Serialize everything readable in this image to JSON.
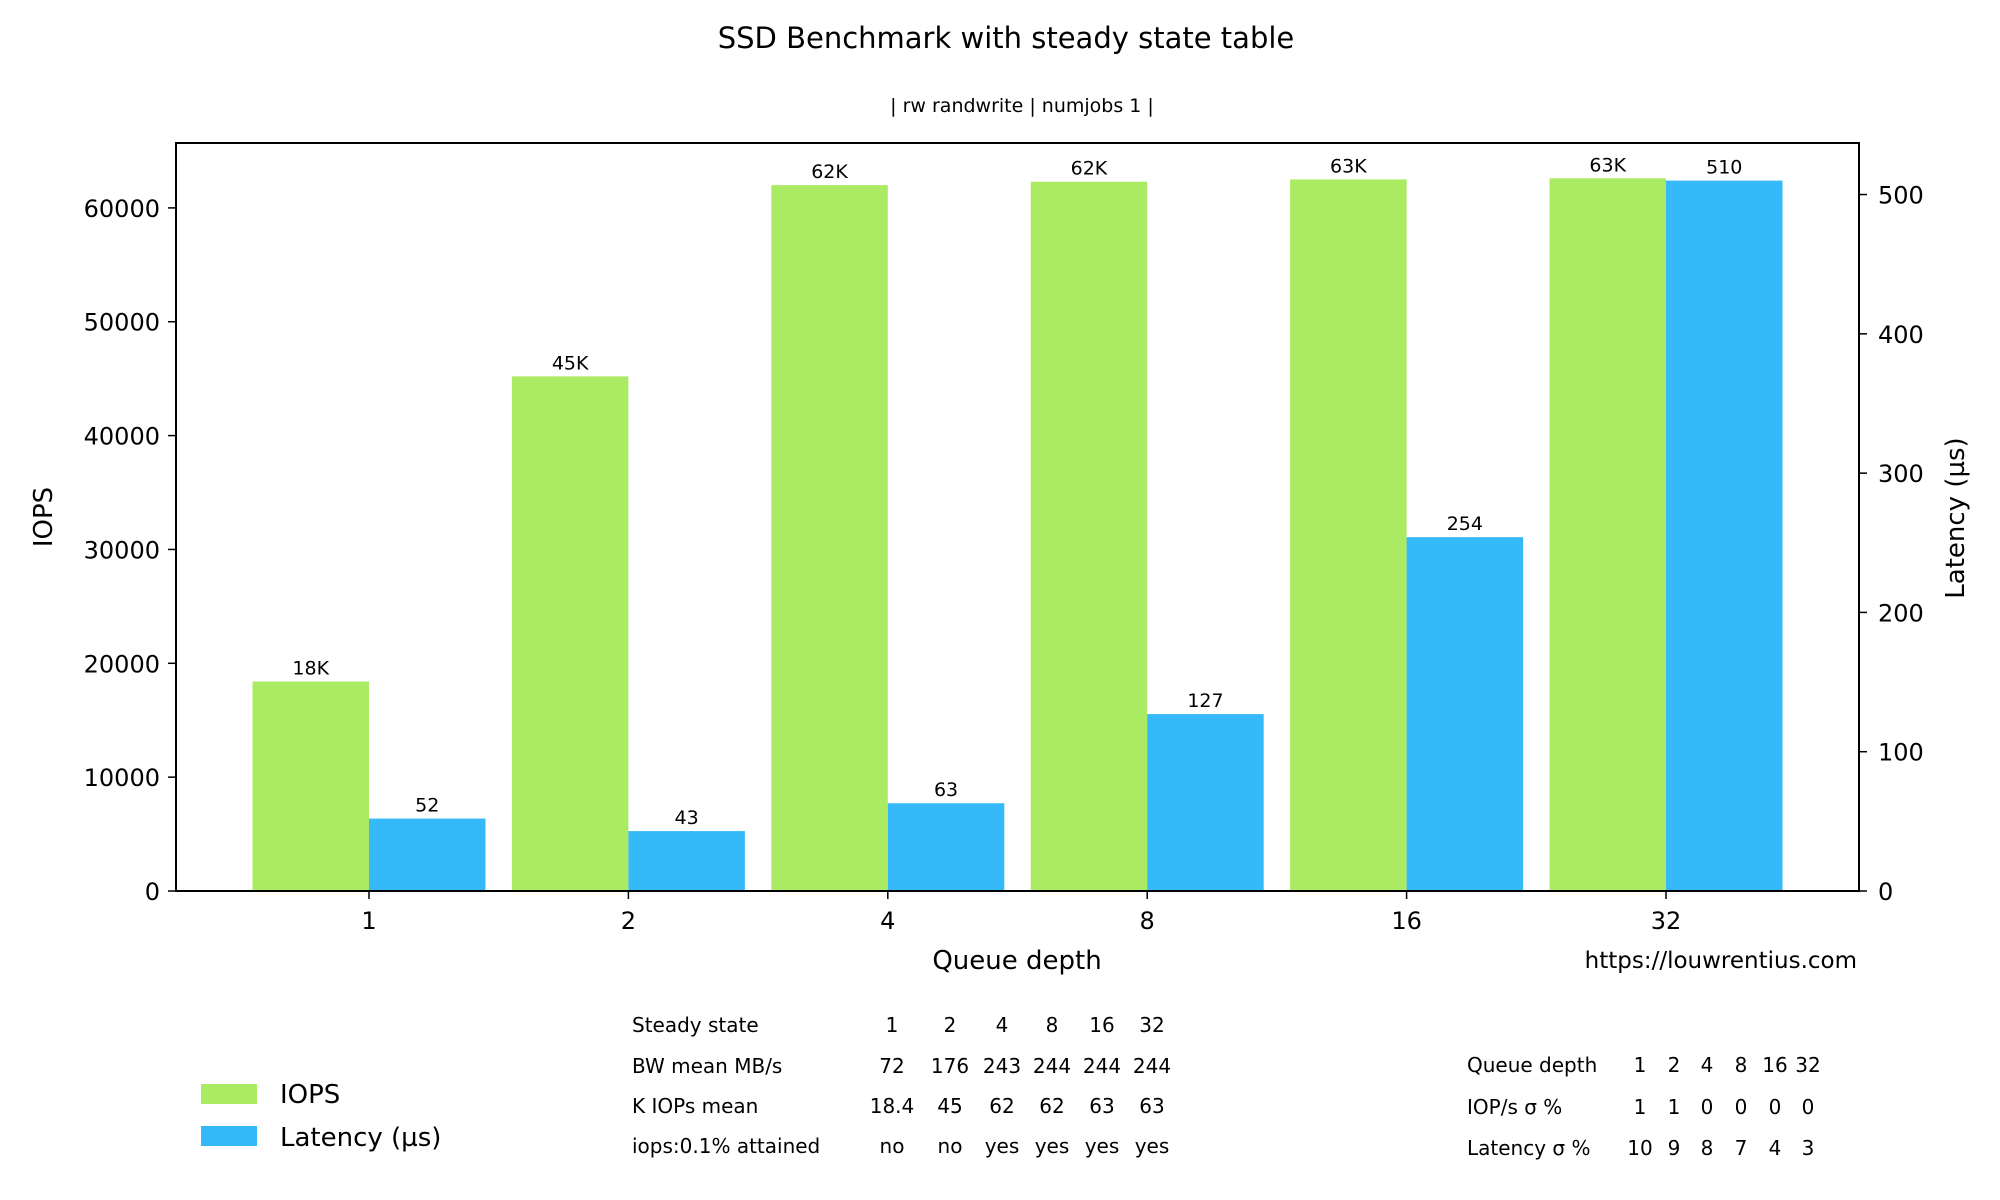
{
  "chart_data": {
    "type": "bar",
    "title": "SSD Benchmark with steady state table",
    "subtitle": "| rw randwrite | numjobs 1 |",
    "xlabel": "Queue depth",
    "ylabel": "IOPS",
    "ylabel_right": "Latency (µs)",
    "categories": [
      "1",
      "2",
      "4",
      "8",
      "16",
      "32"
    ],
    "ylim": [
      0,
      65700
    ],
    "ylim_right": [
      0,
      537
    ],
    "yticks": [
      0,
      10000,
      20000,
      30000,
      40000,
      50000,
      60000
    ],
    "yticks_right": [
      0,
      100,
      200,
      300,
      400,
      500
    ],
    "grid": false,
    "series": [
      {
        "name": "IOPS",
        "axis": "left",
        "color": "#abeb63",
        "values": [
          18400,
          45200,
          62000,
          62300,
          62500,
          62600
        ],
        "labels": [
          "18K",
          "45K",
          "62K",
          "62K",
          "63K",
          "63K"
        ]
      },
      {
        "name": "Latency (µs)",
        "axis": "right",
        "color": "#35b9f9",
        "values": [
          52,
          43,
          63,
          127,
          254,
          510
        ],
        "labels": [
          "52",
          "43",
          "63",
          "127",
          "254",
          "510"
        ]
      }
    ],
    "legend": {
      "position": "bottom-left",
      "entries": [
        "IOPS",
        "Latency (µs)"
      ]
    },
    "annotation": "https://louwrentius.com"
  },
  "steady_state_table": {
    "header": [
      "Steady state",
      "1",
      "2",
      "4",
      "8",
      "16",
      "32"
    ],
    "rows": [
      [
        "BW mean MB/s",
        "72",
        "176",
        "243",
        "244",
        "244",
        "244"
      ],
      [
        "K IOPs  mean",
        "18.4",
        "45",
        "62",
        "62",
        "63",
        "63"
      ],
      [
        "iops:0.1% attained",
        "no",
        "no",
        "yes",
        "yes",
        "yes",
        "yes"
      ]
    ]
  },
  "stddev_table": {
    "header": [
      "Queue depth",
      "1",
      "2",
      "4",
      "8",
      "16",
      "32"
    ],
    "rows": [
      [
        "IOP/s σ %",
        "1",
        "1",
        "0",
        "0",
        "0",
        "0"
      ],
      [
        "Latency σ %",
        "10",
        "9",
        "8",
        "7",
        "4",
        "3"
      ]
    ]
  }
}
